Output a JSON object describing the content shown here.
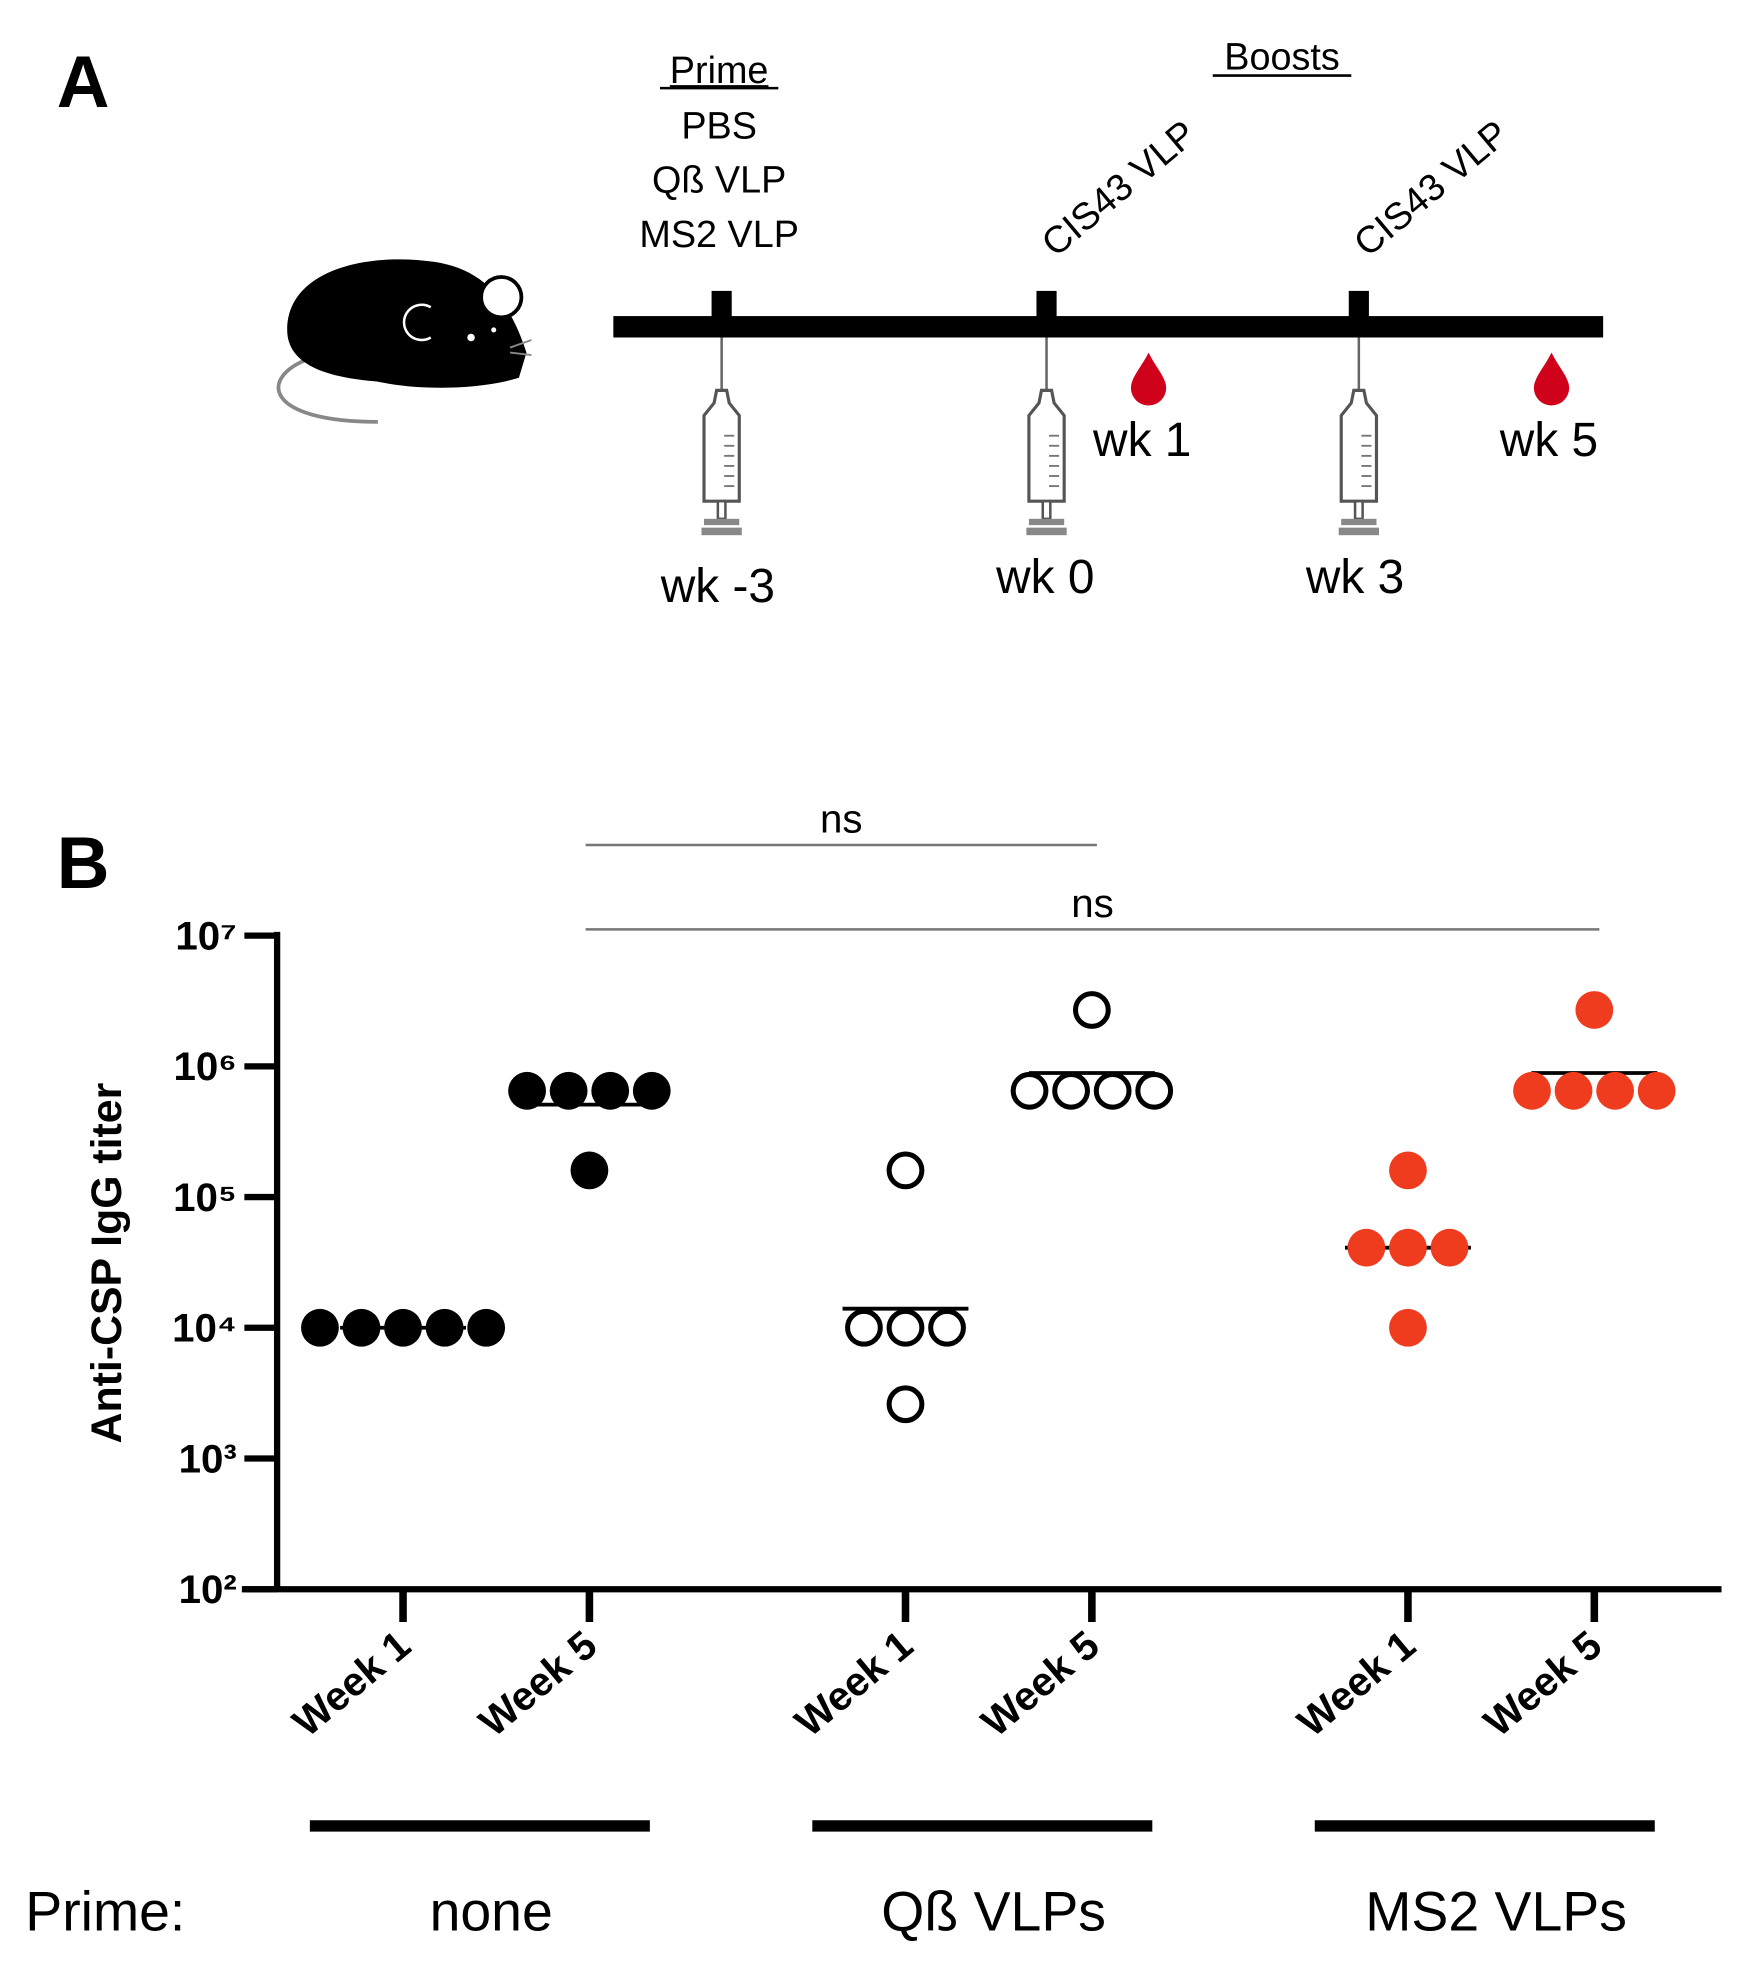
{
  "panel_a": {
    "label": "A",
    "prime_title": "Prime",
    "prime_items": [
      "PBS",
      "Qß VLP",
      "MS2 VLP"
    ],
    "boosts_title": "Boosts",
    "boost_labels": [
      "CIS43 VLP",
      "CIS43 VLP"
    ],
    "injection_labels": [
      "wk -3",
      "wk 0",
      "wk 3"
    ],
    "bleed_labels": [
      "wk 1",
      "wk 5"
    ]
  },
  "chart_data": {
    "type": "dotplot",
    "panel_label": "B",
    "ylabel": "Anti-CSP IgG titer",
    "log_y": true,
    "categories": [
      "Week 1",
      "Week 5"
    ],
    "group_title": "Prime:",
    "ylim": [
      100,
      10000000
    ],
    "yticks": [
      {
        "value": 100,
        "label": "10²"
      },
      {
        "value": 1000,
        "label": "10³"
      },
      {
        "value": 10000,
        "label": "10⁴"
      },
      {
        "value": 100000,
        "label": "10⁵"
      },
      {
        "value": 1000000,
        "label": "10⁶"
      },
      {
        "value": 10000000,
        "label": "10⁷"
      }
    ],
    "series": [
      {
        "name": "none",
        "color": "#000000",
        "filled": true,
        "values": [
          [
            10000,
            10000,
            10000,
            10000,
            10000
          ],
          [
            650000,
            650000,
            650000,
            650000,
            160000
          ]
        ],
        "means": [
          10000,
          510000
        ]
      },
      {
        "name": "Qß VLPs",
        "color": "#000000",
        "filled": false,
        "values": [
          [
            160000,
            10000,
            10000,
            10000,
            2600
          ],
          [
            2700000,
            650000,
            650000,
            650000,
            650000
          ]
        ],
        "means": [
          14000,
          890000
        ]
      },
      {
        "name": "MS2 VLPs",
        "color": "#f03c1e",
        "filled": true,
        "values": [
          [
            160000,
            41000,
            41000,
            41000,
            10000
          ],
          [
            2700000,
            650000,
            650000,
            650000,
            650000
          ]
        ],
        "means": [
          41000,
          890000
        ]
      }
    ],
    "comparisons": [
      {
        "label": "ns",
        "from": 1,
        "to": 3
      },
      {
        "label": "ns",
        "from": 1,
        "to": 5
      }
    ]
  }
}
